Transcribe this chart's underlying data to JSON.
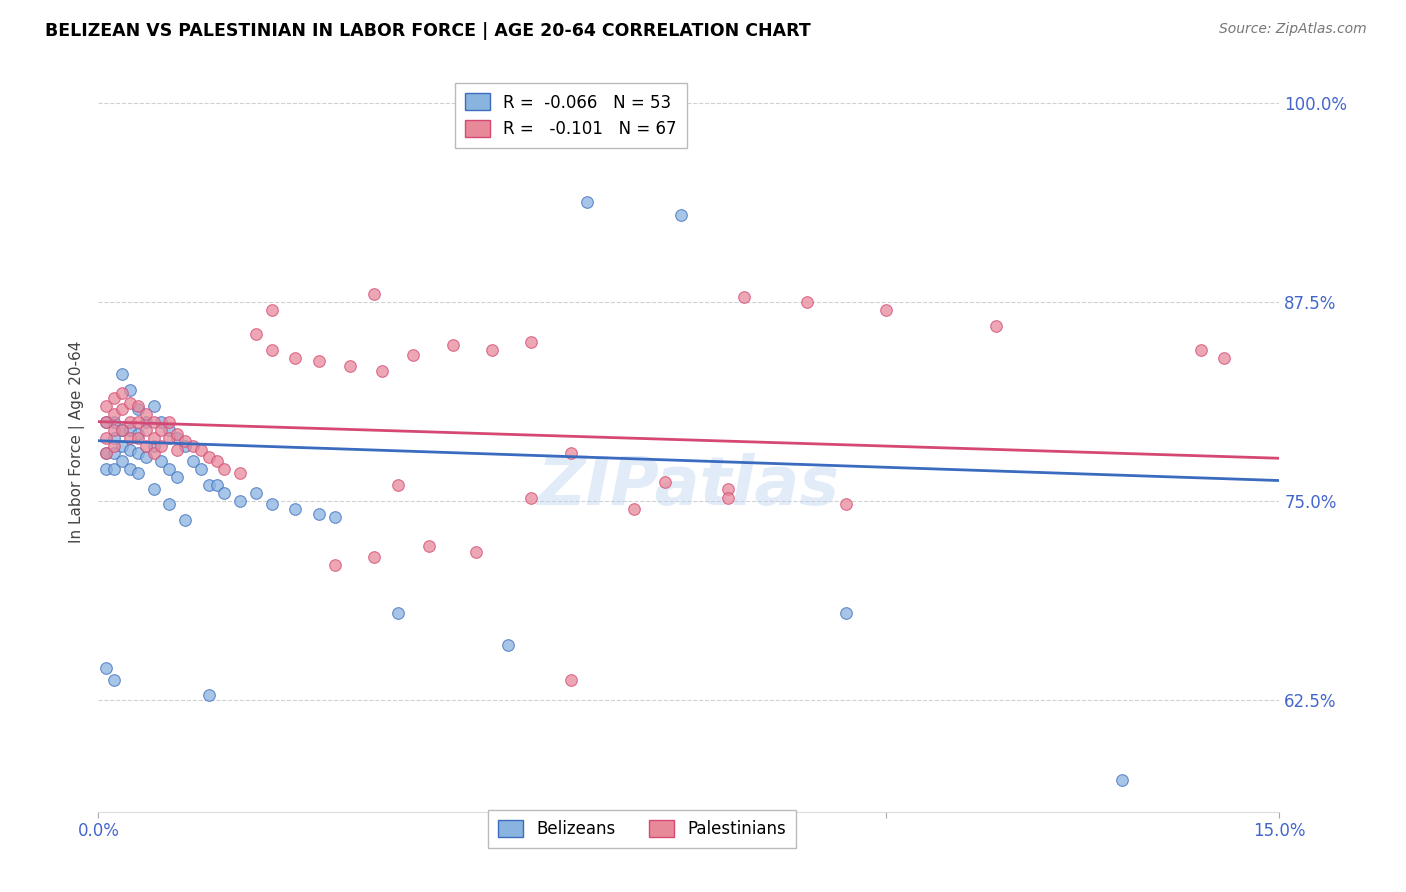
{
  "title": "BELIZEAN VS PALESTINIAN IN LABOR FORCE | AGE 20-64 CORRELATION CHART",
  "source": "Source: ZipAtlas.com",
  "ylabel": "In Labor Force | Age 20-64",
  "xlim": [
    0.0,
    0.15
  ],
  "ylim": [
    0.555,
    1.02
  ],
  "yticks": [
    0.625,
    0.75,
    0.875,
    1.0
  ],
  "yticklabels": [
    "62.5%",
    "75.0%",
    "87.5%",
    "100.0%"
  ],
  "xticks": [
    0.0,
    0.05,
    0.1,
    0.15
  ],
  "xticklabels": [
    "0.0%",
    "",
    "",
    "15.0%"
  ],
  "legend_r_belize": "-0.066",
  "legend_n_belize": "53",
  "legend_r_palest": "-0.101",
  "legend_n_palest": "67",
  "blue_color": "#8ab4e0",
  "pink_color": "#e8899a",
  "blue_line_color": "#3a6bbf",
  "pink_line_color": "#d44873",
  "watermark": "ZIPatlas",
  "marker_size": 70,
  "belize_x": [
    0.001,
    0.001,
    0.001,
    0.002,
    0.002,
    0.002,
    0.002,
    0.003,
    0.003,
    0.003,
    0.004,
    0.004,
    0.004,
    0.005,
    0.005,
    0.005,
    0.006,
    0.006,
    0.007,
    0.007,
    0.008,
    0.008,
    0.009,
    0.009,
    0.01,
    0.01,
    0.011,
    0.012,
    0.013,
    0.014,
    0.015,
    0.016,
    0.018,
    0.02,
    0.022,
    0.025,
    0.028,
    0.03,
    0.038,
    0.052,
    0.062,
    0.074,
    0.095,
    0.13,
    0.001,
    0.002,
    0.003,
    0.004,
    0.005,
    0.007,
    0.009,
    0.011,
    0.014
  ],
  "belize_y": [
    0.8,
    0.78,
    0.77,
    0.8,
    0.79,
    0.78,
    0.77,
    0.795,
    0.785,
    0.775,
    0.795,
    0.782,
    0.77,
    0.792,
    0.78,
    0.768,
    0.8,
    0.778,
    0.81,
    0.785,
    0.8,
    0.775,
    0.795,
    0.77,
    0.79,
    0.765,
    0.785,
    0.775,
    0.77,
    0.76,
    0.76,
    0.755,
    0.75,
    0.755,
    0.748,
    0.745,
    0.742,
    0.74,
    0.68,
    0.66,
    0.938,
    0.93,
    0.68,
    0.575,
    0.645,
    0.638,
    0.83,
    0.82,
    0.808,
    0.758,
    0.748,
    0.738,
    0.628
  ],
  "palest_x": [
    0.001,
    0.001,
    0.001,
    0.001,
    0.002,
    0.002,
    0.002,
    0.002,
    0.003,
    0.003,
    0.003,
    0.004,
    0.004,
    0.004,
    0.005,
    0.005,
    0.005,
    0.006,
    0.006,
    0.006,
    0.007,
    0.007,
    0.007,
    0.008,
    0.008,
    0.009,
    0.009,
    0.01,
    0.01,
    0.011,
    0.012,
    0.013,
    0.014,
    0.015,
    0.016,
    0.018,
    0.02,
    0.022,
    0.025,
    0.028,
    0.032,
    0.036,
    0.04,
    0.045,
    0.05,
    0.055,
    0.06,
    0.022,
    0.035,
    0.082,
    0.09,
    0.1,
    0.038,
    0.055,
    0.068,
    0.08,
    0.114,
    0.14,
    0.143,
    0.06,
    0.072,
    0.08,
    0.095,
    0.042,
    0.048,
    0.035,
    0.03
  ],
  "palest_y": [
    0.81,
    0.8,
    0.79,
    0.78,
    0.815,
    0.805,
    0.795,
    0.785,
    0.818,
    0.808,
    0.795,
    0.812,
    0.8,
    0.79,
    0.81,
    0.8,
    0.79,
    0.805,
    0.795,
    0.785,
    0.8,
    0.79,
    0.78,
    0.795,
    0.785,
    0.8,
    0.79,
    0.792,
    0.782,
    0.788,
    0.785,
    0.782,
    0.778,
    0.775,
    0.77,
    0.768,
    0.855,
    0.845,
    0.84,
    0.838,
    0.835,
    0.832,
    0.842,
    0.848,
    0.845,
    0.85,
    0.78,
    0.87,
    0.88,
    0.878,
    0.875,
    0.87,
    0.76,
    0.752,
    0.745,
    0.758,
    0.86,
    0.845,
    0.84,
    0.638,
    0.762,
    0.752,
    0.748,
    0.722,
    0.718,
    0.715,
    0.71
  ]
}
